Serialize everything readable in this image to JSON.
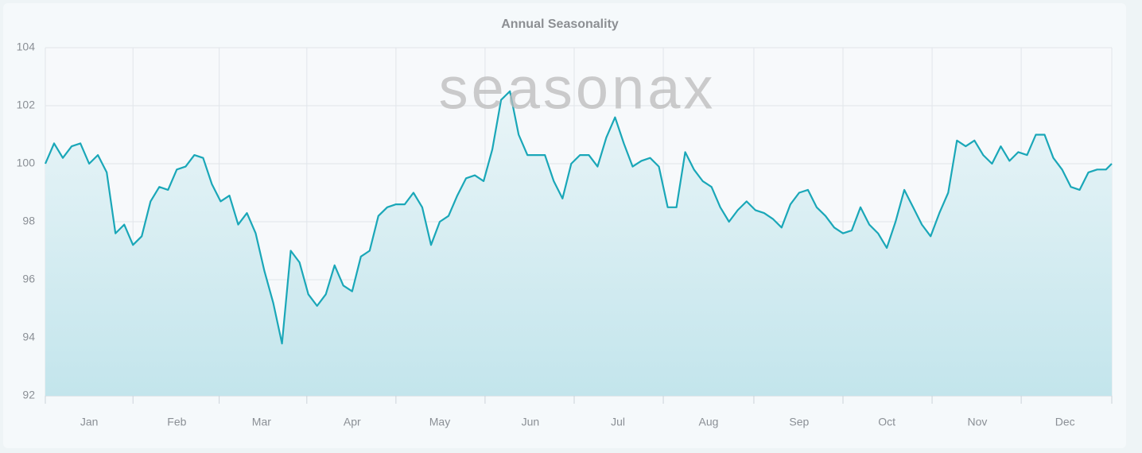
{
  "chart_data": {
    "type": "line",
    "title": "Annual Seasonality",
    "watermark": "seasonax",
    "color": "#1aa7b8",
    "area": true,
    "grid": true,
    "x": [
      1,
      4,
      7,
      10,
      13,
      16,
      19,
      22,
      25,
      28,
      31,
      34,
      37,
      40,
      43,
      46,
      49,
      52,
      55,
      58,
      61,
      64,
      67,
      70,
      73,
      76,
      79,
      82,
      85,
      88,
      91,
      94,
      97,
      100,
      103,
      106,
      109,
      112,
      115,
      118,
      121,
      124,
      127,
      130,
      133,
      136,
      139,
      142,
      145,
      148,
      151,
      154,
      157,
      160,
      163,
      166,
      169,
      172,
      175,
      178,
      181,
      184,
      187,
      190,
      193,
      196,
      199,
      202,
      205,
      208,
      211,
      214,
      217,
      220,
      223,
      226,
      229,
      232,
      235,
      238,
      241,
      244,
      247,
      250,
      253,
      256,
      259,
      262,
      265,
      268,
      271,
      274,
      277,
      280,
      283,
      286,
      289,
      292,
      295,
      298,
      301,
      304,
      307,
      310,
      313,
      316,
      319,
      322,
      325,
      328,
      331,
      334,
      337,
      340,
      343,
      346,
      349,
      352,
      355,
      358,
      361,
      364,
      366
    ],
    "values": [
      100.0,
      100.7,
      100.2,
      100.6,
      100.7,
      100.0,
      100.3,
      99.7,
      97.6,
      97.9,
      97.2,
      97.5,
      98.7,
      99.2,
      99.1,
      99.8,
      99.9,
      100.3,
      100.2,
      99.3,
      98.7,
      98.9,
      97.9,
      98.3,
      97.6,
      96.3,
      95.2,
      93.8,
      97.0,
      96.6,
      95.5,
      95.1,
      95.5,
      96.5,
      95.8,
      95.6,
      96.8,
      97.0,
      98.2,
      98.5,
      98.6,
      98.6,
      99.0,
      98.5,
      97.2,
      98.0,
      98.2,
      98.9,
      99.5,
      99.6,
      99.4,
      100.5,
      102.2,
      102.5,
      101.0,
      100.3,
      100.3,
      100.3,
      99.4,
      98.8,
      100.0,
      100.3,
      100.3,
      99.9,
      100.9,
      101.6,
      100.7,
      99.9,
      100.1,
      100.2,
      99.9,
      98.5,
      98.5,
      100.4,
      99.8,
      99.4,
      99.2,
      98.5,
      98.0,
      98.4,
      98.7,
      98.4,
      98.3,
      98.1,
      97.8,
      98.6,
      99.0,
      99.1,
      98.5,
      98.2,
      97.8,
      97.6,
      97.7,
      98.5,
      97.9,
      97.6,
      97.1,
      98.0,
      99.1,
      98.5,
      97.9,
      97.5,
      98.3,
      99.0,
      100.8,
      100.6,
      100.8,
      100.3,
      100.0,
      100.6,
      100.1,
      100.4,
      100.3,
      101.0,
      101.0,
      100.2,
      99.8,
      99.2,
      99.1,
      99.7,
      99.8,
      99.8,
      100.0
    ],
    "xlim": [
      1,
      366
    ],
    "xticks": [
      {
        "value": 16,
        "label": "Jan"
      },
      {
        "value": 46,
        "label": "Feb"
      },
      {
        "value": 75,
        "label": "Mar"
      },
      {
        "value": 106,
        "label": "Apr"
      },
      {
        "value": 136,
        "label": "May"
      },
      {
        "value": 167,
        "label": "Jun"
      },
      {
        "value": 197,
        "label": "Jul"
      },
      {
        "value": 228,
        "label": "Aug"
      },
      {
        "value": 259,
        "label": "Sep"
      },
      {
        "value": 289,
        "label": "Oct"
      },
      {
        "value": 320,
        "label": "Nov"
      },
      {
        "value": 350,
        "label": "Dec"
      }
    ],
    "ylim": [
      92,
      104
    ],
    "yticks": [
      92,
      94,
      96,
      98,
      100,
      102,
      104
    ]
  }
}
